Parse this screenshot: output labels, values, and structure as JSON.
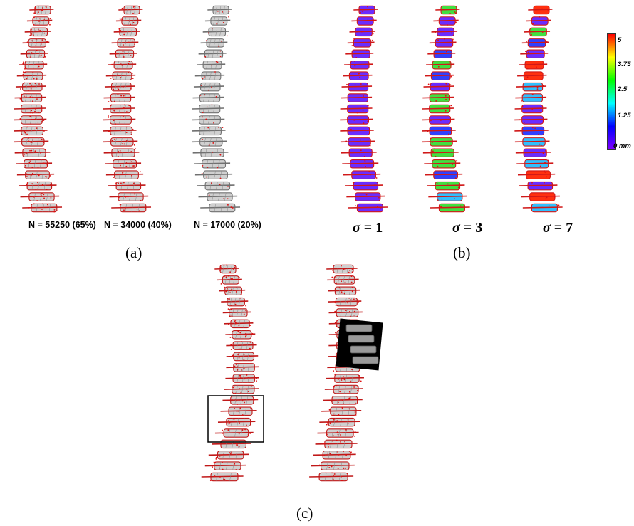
{
  "panel_a": {
    "label": "(a)",
    "spines": [
      {
        "caption": "N = 55250 (65%)",
        "red_density": 0.9
      },
      {
        "caption": "N = 34000 (40%)",
        "red_density": 0.55
      },
      {
        "caption": "N = 17000 (20%)",
        "red_density": 0.25
      }
    ]
  },
  "panel_b": {
    "label": "(b)",
    "sigmas": [
      {
        "symbol": "σ",
        "equals": " = ",
        "value": "1",
        "heat": 0.1
      },
      {
        "symbol": "σ",
        "equals": " = ",
        "value": "3",
        "heat": 0.5
      },
      {
        "symbol": "σ",
        "equals": " = ",
        "value": "7",
        "heat": 0.9
      }
    ],
    "colorbar": {
      "ticks": [
        "5",
        "3.75",
        "2.5",
        "1.25",
        "0 mm"
      ],
      "colors": [
        "#ff0000",
        "#ffff00",
        "#00ff00",
        "#00ffff",
        "#0000ff",
        "#8000ff"
      ]
    }
  },
  "panel_c": {
    "label": "(c)"
  }
}
